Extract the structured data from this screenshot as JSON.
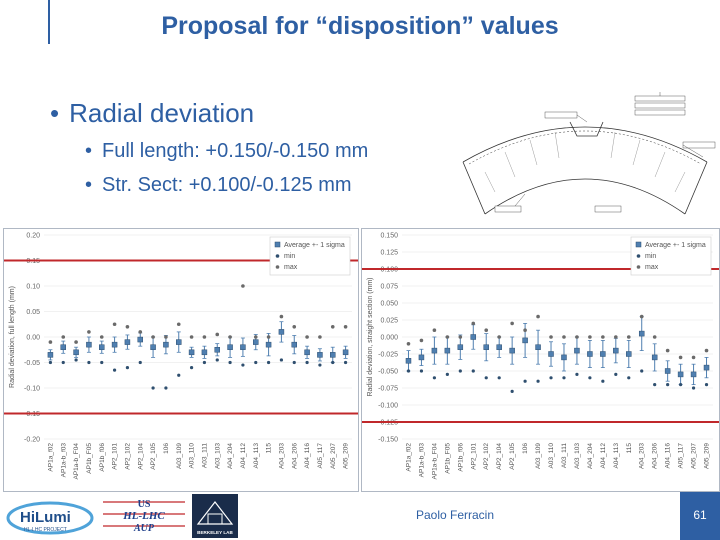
{
  "slide": {
    "title": "Proposal for “disposition” values",
    "bullet_main": "Radial deviation",
    "bullet_sub1": "Full length: +0.150/-0.150 mm",
    "bullet_sub2": "Str. Sect: +0.100/-0.125 mm",
    "author": "Paolo Ferracin",
    "page": "61"
  },
  "logos": {
    "hilumi_main": "HiLumi",
    "hilumi_sub": "HL-LHC PROJECT",
    "us_line1": "US",
    "us_line2": "HL-LHC",
    "us_line3": "AUP",
    "lbl": "BERKELEY LAB"
  },
  "colors": {
    "accent": "#2e5fa3",
    "limit_line": "#c0282b",
    "marker": "#4f7fb0",
    "marker_dark": "#2f4f6f"
  },
  "chart_data": [
    {
      "type": "scatter",
      "ylabel": "Radial deviation, full length (mm)",
      "ylim": [
        -0.2,
        0.2
      ],
      "yticks": [
        "0.20",
        "0.15",
        "0.10",
        "0.05",
        "0.00",
        "-0.05",
        "-0.10",
        "-0.15",
        "-0.20"
      ],
      "limits": [
        0.15,
        -0.15
      ],
      "legend": [
        "Average +- 1 sigma",
        "min",
        "max"
      ],
      "categories": [
        "AP1a_f02",
        "AP1a-b_f03",
        "AP1a-b_F04",
        "AP1b_F05",
        "AP1b_f06",
        "AP2_101",
        "AP2_102",
        "AP2_104",
        "AP2_105",
        "106",
        "A03_109",
        "A03_110",
        "A03_111",
        "A03_103",
        "A04_204",
        "A04_112",
        "A04_113",
        "115",
        "A04_203",
        "A04_206",
        "A04_116",
        "A05_117",
        "A05_207",
        "A05_209"
      ],
      "avg": [
        -0.035,
        -0.02,
        -0.03,
        -0.015,
        -0.02,
        -0.015,
        -0.01,
        -0.005,
        -0.02,
        -0.015,
        -0.01,
        -0.03,
        -0.03,
        -0.025,
        -0.02,
        -0.02,
        -0.01,
        -0.015,
        0.01,
        -0.015,
        -0.03,
        -0.035,
        -0.035,
        -0.03
      ],
      "sigma": [
        0.01,
        0.012,
        0.01,
        0.015,
        0.012,
        0.015,
        0.014,
        0.013,
        0.02,
        0.018,
        0.02,
        0.01,
        0.012,
        0.012,
        0.02,
        0.018,
        0.015,
        0.022,
        0.02,
        0.018,
        0.012,
        0.012,
        0.015,
        0.012
      ],
      "min": [
        -0.05,
        -0.05,
        -0.045,
        -0.05,
        -0.05,
        -0.065,
        -0.06,
        -0.05,
        -0.1,
        -0.1,
        -0.075,
        -0.06,
        -0.05,
        -0.045,
        -0.05,
        -0.055,
        -0.05,
        -0.05,
        -0.045,
        -0.05,
        -0.05,
        -0.055,
        -0.05,
        -0.05
      ],
      "max": [
        -0.01,
        0.0,
        -0.01,
        0.01,
        0.0,
        0.025,
        0.02,
        0.01,
        0.0,
        0.0,
        0.025,
        0.0,
        0.0,
        0.005,
        0.0,
        0.1,
        0.0,
        0.0,
        0.04,
        0.02,
        0.0,
        0.0,
        0.02,
        0.02
      ]
    },
    {
      "type": "scatter",
      "ylabel": "Radial deviation, straight section (mm)",
      "ylim": [
        -0.15,
        0.15
      ],
      "yticks": [
        "0.150",
        "0.125",
        "0.100",
        "0.075",
        "0.050",
        "0.025",
        "0.000",
        "-0.025",
        "-0.050",
        "-0.075",
        "-0.100",
        "-0.125",
        "-0.150"
      ],
      "limits": [
        0.1,
        -0.125
      ],
      "legend": [
        "Average +- 1 sigma",
        "min",
        "max"
      ],
      "categories": [
        "AP1a_f02",
        "AP1a-b_f03",
        "AP1a-b_F04",
        "AP1b_F05",
        "AP1b_f06",
        "AP2_101",
        "AP2_102",
        "AP2_104",
        "AP2_105",
        "106",
        "A03_109",
        "A03_110",
        "A03_111",
        "A03_103",
        "A04_204",
        "A04_112",
        "A04_113",
        "115",
        "A04_203",
        "A04_206",
        "A04_116",
        "A05_117",
        "A05_207",
        "A05_209"
      ],
      "avg": [
        -0.035,
        -0.03,
        -0.02,
        -0.02,
        -0.015,
        0.0,
        -0.015,
        -0.015,
        -0.02,
        -0.005,
        -0.015,
        -0.025,
        -0.03,
        -0.02,
        -0.025,
        -0.025,
        -0.02,
        -0.025,
        0.005,
        -0.03,
        -0.05,
        -0.055,
        -0.055,
        -0.045
      ],
      "sigma": [
        0.015,
        0.012,
        0.02,
        0.02,
        0.018,
        0.018,
        0.02,
        0.015,
        0.02,
        0.025,
        0.025,
        0.018,
        0.02,
        0.02,
        0.02,
        0.02,
        0.018,
        0.02,
        0.025,
        0.02,
        0.015,
        0.015,
        0.015,
        0.015
      ],
      "min": [
        -0.05,
        -0.05,
        -0.06,
        -0.055,
        -0.05,
        -0.05,
        -0.06,
        -0.06,
        -0.08,
        -0.065,
        -0.065,
        -0.06,
        -0.06,
        -0.055,
        -0.06,
        -0.065,
        -0.055,
        -0.06,
        -0.05,
        -0.07,
        -0.07,
        -0.07,
        -0.075,
        -0.07
      ],
      "max": [
        -0.01,
        -0.005,
        0.01,
        0.0,
        0.0,
        0.02,
        0.01,
        0.0,
        0.02,
        0.01,
        0.03,
        0.0,
        0.0,
        0.0,
        0.0,
        0.0,
        0.0,
        0.0,
        0.03,
        0.0,
        -0.02,
        -0.03,
        -0.03,
        -0.02
      ]
    }
  ]
}
